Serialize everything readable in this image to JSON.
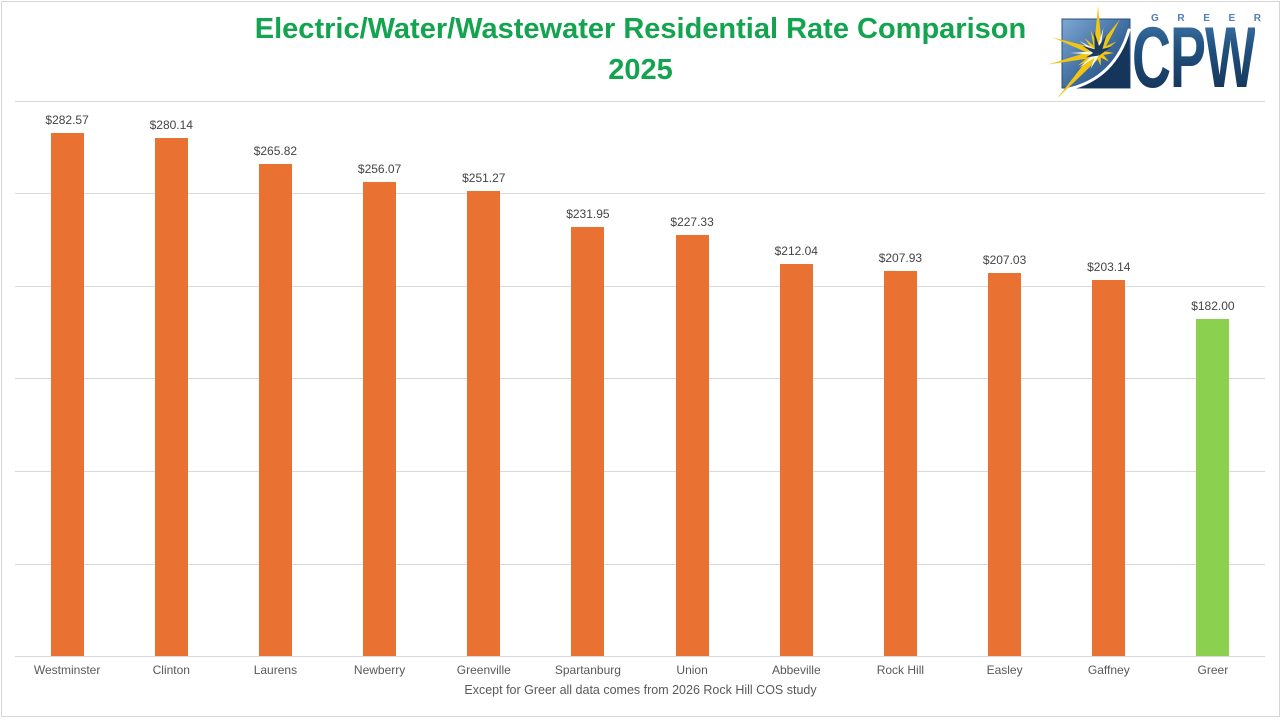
{
  "title": {
    "line1": "Electric/Water/Wastewater Residential Rate Comparison",
    "line2": "2025"
  },
  "footnote": "Except for Greer all data comes from 2026 Rock Hill COS study",
  "logo": {
    "top_text": "GREER",
    "main_text": "CPW"
  },
  "colors": {
    "title_green": "#14A44F",
    "bar_orange": "#E97132",
    "bar_green": "#8CD050",
    "gridline": "#D9D9D9",
    "label_dark": "#444444",
    "label_gray": "#595959"
  },
  "chart_data": {
    "type": "bar",
    "title": "Electric/Water/Wastewater Residential Rate Comparison 2025",
    "categories": [
      "Westminster",
      "Clinton",
      "Laurens",
      "Newberry",
      "Greenville",
      "Spartanburg",
      "Union",
      "Abbeville",
      "Rock Hill",
      "Easley",
      "Gaffney",
      "Greer"
    ],
    "values": [
      282.57,
      280.14,
      265.82,
      256.07,
      251.27,
      231.95,
      227.33,
      212.04,
      207.93,
      207.03,
      203.14,
      182.0
    ],
    "value_labels": [
      "$282.57",
      "$280.14",
      "$265.82",
      "$256.07",
      "$251.27",
      "$231.95",
      "$227.33",
      "$212.04",
      "$207.93",
      "$207.03",
      "$203.14",
      "$182.00"
    ],
    "xlabel": "",
    "ylabel": "",
    "ylim": [
      0,
      300
    ],
    "grid_step": 50,
    "grid": true,
    "legend": false,
    "bar_color": "#E97132",
    "highlight_index": 11,
    "highlight_color": "#8CD050",
    "annotation": "Except for Greer all data comes from 2026 Rock Hill COS study"
  }
}
